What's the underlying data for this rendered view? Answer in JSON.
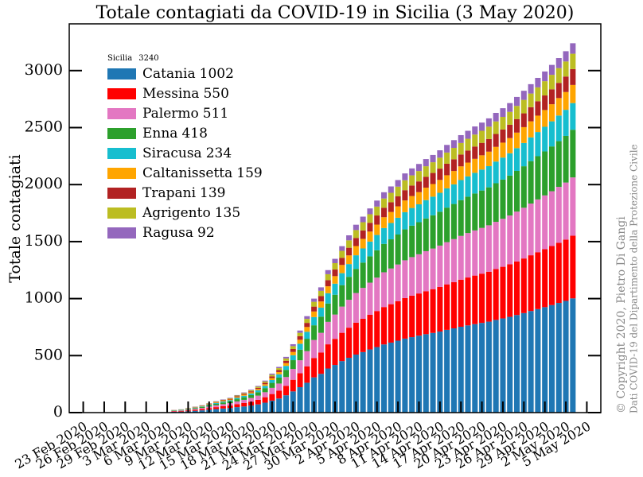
{
  "chart_data": {
    "type": "stacked-bar",
    "title": "Totale contagiati da COVID-19 in Sicilia (3 May 2020)",
    "ylabel": "Totale contagiati",
    "legend_title": "Sicilia",
    "legend_total": 3240,
    "legend_position": "upper left",
    "copyright": "© Copyright 2020, Pietro Di Gangi",
    "source": "Dati COVID-19 del Dipartimento della Protezione Civile",
    "xlim": [
      "2020-02-21",
      "2020-05-07"
    ],
    "ylim": [
      0,
      3410
    ],
    "yticks": [
      0,
      500,
      1000,
      1500,
      2000,
      2500,
      3000
    ],
    "xticks": [
      {
        "value": "2020-02-23",
        "label": "23 Feb 2020"
      },
      {
        "value": "2020-02-26",
        "label": "26 Feb 2020"
      },
      {
        "value": "2020-02-29",
        "label": "29 Feb 2020"
      },
      {
        "value": "2020-03-03",
        "label": "3 Mar 2020"
      },
      {
        "value": "2020-03-06",
        "label": "6 Mar 2020"
      },
      {
        "value": "2020-03-09",
        "label": "9 Mar 2020"
      },
      {
        "value": "2020-03-12",
        "label": "12 Mar 2020"
      },
      {
        "value": "2020-03-15",
        "label": "15 Mar 2020"
      },
      {
        "value": "2020-03-18",
        "label": "18 Mar 2020"
      },
      {
        "value": "2020-03-21",
        "label": "21 Mar 2020"
      },
      {
        "value": "2020-03-24",
        "label": "24 Mar 2020"
      },
      {
        "value": "2020-03-27",
        "label": "27 Mar 2020"
      },
      {
        "value": "2020-03-30",
        "label": "30 Mar 2020"
      },
      {
        "value": "2020-04-02",
        "label": "2 Apr 2020"
      },
      {
        "value": "2020-04-05",
        "label": "5 Apr 2020"
      },
      {
        "value": "2020-04-08",
        "label": "8 Apr 2020"
      },
      {
        "value": "2020-04-11",
        "label": "11 Apr 2020"
      },
      {
        "value": "2020-04-14",
        "label": "14 Apr 2020"
      },
      {
        "value": "2020-04-17",
        "label": "17 Apr 2020"
      },
      {
        "value": "2020-04-20",
        "label": "20 Apr 2020"
      },
      {
        "value": "2020-04-23",
        "label": "23 Apr 2020"
      },
      {
        "value": "2020-04-26",
        "label": "26 Apr 2020"
      },
      {
        "value": "2020-04-29",
        "label": "29 Apr 2020"
      },
      {
        "value": "2020-05-02",
        "label": "2 May 2020"
      },
      {
        "value": "2020-05-05",
        "label": "5 May 2020"
      }
    ],
    "x": [
      "2020-03-07",
      "2020-03-08",
      "2020-03-09",
      "2020-03-10",
      "2020-03-11",
      "2020-03-12",
      "2020-03-13",
      "2020-03-14",
      "2020-03-15",
      "2020-03-16",
      "2020-03-17",
      "2020-03-18",
      "2020-03-19",
      "2020-03-20",
      "2020-03-21",
      "2020-03-22",
      "2020-03-23",
      "2020-03-24",
      "2020-03-25",
      "2020-03-26",
      "2020-03-27",
      "2020-03-28",
      "2020-03-29",
      "2020-03-30",
      "2020-03-31",
      "2020-04-01",
      "2020-04-02",
      "2020-04-03",
      "2020-04-04",
      "2020-04-05",
      "2020-04-06",
      "2020-04-07",
      "2020-04-08",
      "2020-04-09",
      "2020-04-10",
      "2020-04-11",
      "2020-04-12",
      "2020-04-13",
      "2020-04-14",
      "2020-04-15",
      "2020-04-16",
      "2020-04-17",
      "2020-04-18",
      "2020-04-19",
      "2020-04-20",
      "2020-04-21",
      "2020-04-22",
      "2020-04-23",
      "2020-04-24",
      "2020-04-25",
      "2020-04-26",
      "2020-04-27",
      "2020-04-28",
      "2020-04-29",
      "2020-04-30",
      "2020-05-01",
      "2020-05-02",
      "2020-05-03"
    ],
    "series": [
      {
        "name": "Catania",
        "color": "#1f77b4",
        "values": [
          7,
          9,
          12,
          16,
          20,
          26,
          31,
          36,
          40,
          48,
          54,
          62,
          72,
          87,
          105,
          124,
          152,
          186,
          223,
          262,
          309,
          340,
          387,
          418,
          452,
          481,
          509,
          531,
          554,
          575,
          598,
          614,
          631,
          649,
          662,
          675,
          688,
          699,
          711,
          726,
          739,
          753,
          765,
          776,
          787,
          798,
          813,
          826,
          840,
          856,
          873,
          891,
          908,
          925,
          943,
          962,
          980,
          1002
        ]
      },
      {
        "name": "Messina",
        "color": "#ff0000",
        "values": [
          4,
          5,
          7,
          9,
          11,
          14,
          17,
          20,
          22,
          26,
          30,
          34,
          40,
          48,
          58,
          68,
          83,
          102,
          122,
          144,
          170,
          187,
          212,
          229,
          248,
          264,
          280,
          292,
          304,
          316,
          328,
          337,
          346,
          356,
          364,
          370,
          377,
          384,
          391,
          399,
          406,
          413,
          420,
          426,
          432,
          438,
          446,
          453,
          461,
          470,
          479,
          489,
          499,
          508,
          518,
          528,
          538,
          550
        ]
      },
      {
        "name": "Palermo",
        "color": "#e377c2",
        "values": [
          4,
          5,
          6,
          8,
          10,
          13,
          16,
          18,
          21,
          24,
          28,
          32,
          37,
          44,
          54,
          63,
          77,
          95,
          114,
          133,
          158,
          173,
          197,
          213,
          230,
          245,
          260,
          271,
          282,
          293,
          305,
          313,
          322,
          331,
          338,
          344,
          351,
          356,
          363,
          370,
          377,
          384,
          390,
          396,
          401,
          407,
          414,
          421,
          428,
          437,
          445,
          454,
          463,
          472,
          481,
          490,
          500,
          511
        ]
      },
      {
        "name": "Enna",
        "color": "#2ca02c",
        "values": [
          3,
          4,
          5,
          7,
          8,
          11,
          13,
          15,
          17,
          20,
          23,
          26,
          30,
          36,
          44,
          52,
          63,
          77,
          93,
          109,
          129,
          142,
          161,
          174,
          188,
          201,
          212,
          222,
          231,
          240,
          249,
          256,
          263,
          271,
          276,
          281,
          287,
          292,
          297,
          303,
          308,
          314,
          319,
          324,
          328,
          333,
          339,
          344,
          350,
          357,
          364,
          372,
          379,
          386,
          393,
          401,
          409,
          418
        ]
      },
      {
        "name": "Siracusa",
        "color": "#17becf",
        "values": [
          2,
          2,
          3,
          4,
          5,
          6,
          7,
          8,
          9,
          11,
          13,
          14,
          17,
          20,
          25,
          29,
          35,
          43,
          52,
          61,
          72,
          79,
          90,
          97,
          105,
          112,
          119,
          124,
          129,
          134,
          139,
          143,
          147,
          151,
          155,
          157,
          161,
          163,
          166,
          169,
          172,
          176,
          178,
          181,
          184,
          186,
          190,
          193,
          196,
          200,
          204,
          208,
          212,
          216,
          220,
          225,
          229,
          234
        ]
      },
      {
        "name": "Caltanissetta",
        "color": "#ffa500",
        "values": [
          1,
          1,
          2,
          3,
          3,
          4,
          5,
          6,
          6,
          8,
          9,
          10,
          11,
          14,
          17,
          20,
          24,
          29,
          35,
          42,
          49,
          54,
          61,
          66,
          72,
          76,
          81,
          84,
          88,
          91,
          95,
          97,
          100,
          103,
          105,
          107,
          109,
          111,
          113,
          115,
          117,
          120,
          121,
          123,
          125,
          127,
          129,
          131,
          133,
          136,
          139,
          141,
          144,
          147,
          150,
          153,
          156,
          159
        ]
      },
      {
        "name": "Trapani",
        "color": "#b22222",
        "values": [
          1,
          1,
          2,
          2,
          3,
          4,
          4,
          5,
          6,
          7,
          8,
          9,
          10,
          12,
          15,
          17,
          21,
          26,
          31,
          36,
          43,
          47,
          54,
          58,
          63,
          67,
          71,
          74,
          77,
          80,
          83,
          85,
          88,
          90,
          92,
          94,
          95,
          97,
          99,
          101,
          103,
          104,
          106,
          108,
          109,
          111,
          113,
          115,
          117,
          119,
          121,
          124,
          126,
          128,
          131,
          133,
          136,
          139
        ]
      },
      {
        "name": "Agrigento",
        "color": "#bcbd22",
        "values": [
          1,
          1,
          2,
          2,
          3,
          3,
          4,
          5,
          5,
          6,
          7,
          8,
          10,
          12,
          14,
          17,
          20,
          25,
          30,
          35,
          42,
          46,
          52,
          56,
          61,
          65,
          69,
          72,
          75,
          78,
          81,
          83,
          85,
          87,
          89,
          91,
          93,
          94,
          96,
          98,
          100,
          101,
          103,
          105,
          106,
          108,
          110,
          111,
          113,
          115,
          118,
          120,
          122,
          125,
          127,
          130,
          132,
          135
        ]
      },
      {
        "name": "Ragusa",
        "color": "#9467bd",
        "values": [
          1,
          1,
          1,
          2,
          2,
          2,
          3,
          3,
          4,
          4,
          5,
          6,
          7,
          8,
          10,
          11,
          14,
          17,
          20,
          24,
          28,
          31,
          36,
          38,
          41,
          44,
          47,
          49,
          51,
          53,
          55,
          56,
          58,
          60,
          61,
          62,
          63,
          64,
          65,
          67,
          68,
          69,
          70,
          71,
          72,
          73,
          75,
          76,
          77,
          79,
          80,
          82,
          83,
          85,
          87,
          88,
          90,
          92
        ]
      }
    ]
  }
}
